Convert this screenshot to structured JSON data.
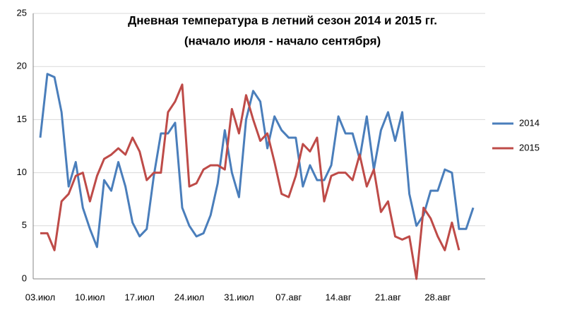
{
  "chart_data": {
    "type": "line",
    "title": "Дневная температура в летний сезон  2014 и 2015 гг.",
    "subtitle": "(начало июля - начало сентября)",
    "categories": [
      "03.июл",
      null,
      null,
      null,
      null,
      null,
      null,
      "10.июл",
      null,
      null,
      null,
      null,
      null,
      null,
      "17.июл",
      null,
      null,
      null,
      null,
      null,
      null,
      "24.июл",
      null,
      null,
      null,
      null,
      null,
      null,
      "31.июл",
      null,
      null,
      null,
      null,
      null,
      null,
      "07.авг",
      null,
      null,
      null,
      null,
      null,
      null,
      "14.авг",
      null,
      null,
      null,
      null,
      null,
      null,
      "21.авг",
      null,
      null,
      null,
      null,
      null,
      null,
      "28.авг",
      null,
      null,
      null,
      null,
      null
    ],
    "series": [
      {
        "name": "2014",
        "color": "#4a7ebb",
        "values": [
          13.3,
          19.3,
          19.0,
          15.7,
          8.7,
          11.0,
          6.7,
          4.7,
          3.0,
          9.3,
          8.3,
          11.0,
          8.7,
          5.3,
          4.0,
          4.7,
          9.7,
          13.7,
          13.7,
          14.7,
          6.7,
          5.0,
          4.0,
          4.3,
          6.0,
          9.0,
          14.0,
          10.0,
          7.7,
          15.0,
          17.7,
          16.7,
          12.3,
          15.3,
          14.0,
          13.3,
          13.3,
          8.7,
          10.7,
          9.3,
          9.3,
          10.7,
          15.3,
          13.7,
          13.7,
          11.3,
          15.3,
          10.3,
          14.0,
          15.7,
          13.0,
          15.7,
          8.0,
          5.0,
          6.0,
          8.3,
          8.3,
          10.3,
          10.0,
          4.7,
          4.7,
          6.7
        ]
      },
      {
        "name": "2015",
        "color": "#be4b48",
        "values": [
          4.3,
          4.3,
          2.7,
          7.3,
          8.0,
          9.7,
          10.0,
          7.3,
          9.7,
          11.3,
          11.7,
          12.3,
          11.7,
          13.3,
          12.0,
          9.3,
          10.0,
          10.0,
          15.7,
          16.7,
          18.3,
          8.7,
          9.0,
          10.3,
          10.7,
          10.7,
          10.3,
          16.0,
          13.7,
          17.3,
          15.0,
          13.0,
          13.7,
          11.0,
          8.0,
          7.7,
          9.7,
          12.7,
          12.0,
          13.3,
          7.3,
          9.7,
          10.0,
          10.0,
          9.3,
          11.7,
          8.7,
          10.3,
          6.3,
          7.3,
          4.0,
          3.7,
          4.0,
          0.0,
          6.7,
          5.7,
          4.0,
          2.7,
          5.3,
          2.7,
          null,
          null
        ]
      }
    ],
    "ylim": [
      0,
      25
    ],
    "yticks": [
      0,
      5,
      10,
      15,
      20,
      25
    ],
    "grid": true,
    "legend": "right"
  }
}
